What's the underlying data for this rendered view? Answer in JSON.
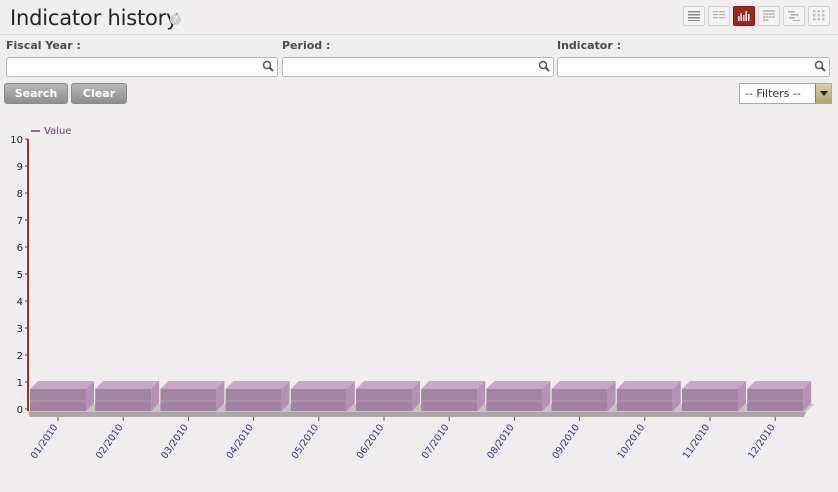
{
  "page": {
    "title": "Indicator history",
    "help_label": "?"
  },
  "view_switcher": [
    {
      "name": "list-view-icon",
      "active": false
    },
    {
      "name": "form-view-icon",
      "active": false
    },
    {
      "name": "graph-view-icon",
      "active": true
    },
    {
      "name": "calendar-view-icon",
      "active": false
    },
    {
      "name": "gantt-view-icon",
      "active": false
    },
    {
      "name": "kanban-view-icon",
      "active": false
    }
  ],
  "search": {
    "fiscal_year_label": "Fiscal Year :",
    "period_label": "Period :",
    "indicator_label": "Indicator :",
    "fiscal_year_value": "",
    "period_value": "",
    "indicator_value": "",
    "search_button": "Search",
    "clear_button": "Clear",
    "filters_value": "-- Filters --"
  },
  "colors": {
    "bar_front": "#9c7f9c",
    "bar_top": "#c7a7c7",
    "bar_side": "#b592b5",
    "axis": "#8b3a2b",
    "legend_line": "#8a6a8a",
    "tick_label": "#3a2a8a",
    "active_view": "#a2231b"
  },
  "chart_data": {
    "type": "bar",
    "categories": [
      "01/2010",
      "02/2010",
      "03/2010",
      "04/2010",
      "05/2010",
      "06/2010",
      "07/2010",
      "08/2010",
      "09/2010",
      "10/2010",
      "11/2010",
      "12/2010"
    ],
    "series": [
      {
        "name": "Value",
        "values": [
          0,
          0,
          0,
          0,
          0,
          0,
          0,
          0,
          0,
          0,
          0,
          0
        ]
      }
    ],
    "ylim": [
      0,
      10
    ],
    "yticks": [
      0,
      1,
      2,
      3,
      4,
      5,
      6,
      7,
      8,
      9,
      10
    ],
    "grid": false,
    "legend": "top-left"
  }
}
